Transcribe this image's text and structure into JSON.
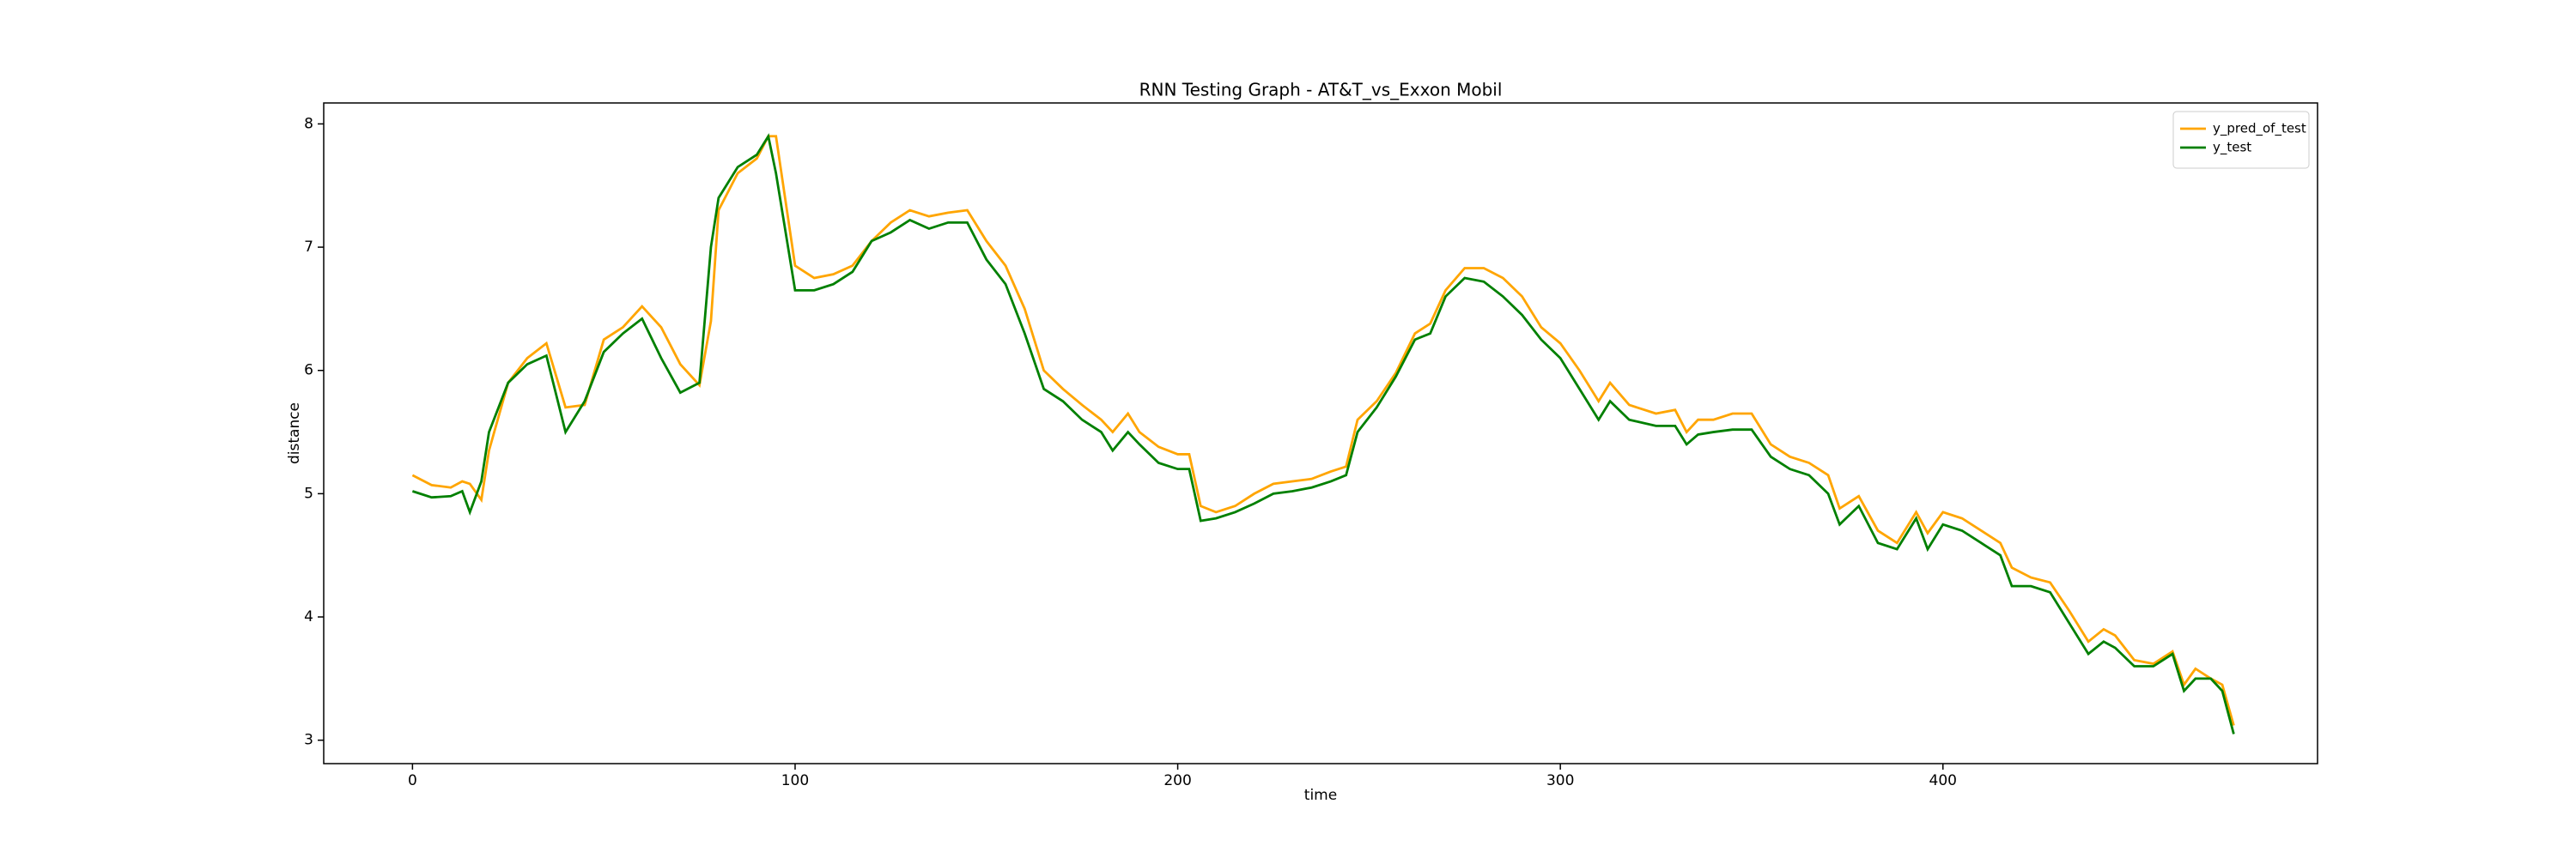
{
  "chart_data": {
    "type": "line",
    "title": "RNN Testing Graph - AT&T_vs_Exxon Mobil",
    "x_label": "time",
    "y_label": "distance",
    "x": [
      0,
      5,
      10,
      13,
      15,
      18,
      20,
      25,
      30,
      35,
      40,
      45,
      50,
      55,
      60,
      65,
      70,
      75,
      78,
      80,
      85,
      90,
      93,
      95,
      100,
      105,
      110,
      115,
      120,
      125,
      130,
      135,
      140,
      145,
      150,
      155,
      160,
      165,
      170,
      175,
      180,
      183,
      187,
      190,
      195,
      200,
      203,
      206,
      210,
      215,
      220,
      225,
      230,
      235,
      240,
      244,
      247,
      252,
      257,
      262,
      266,
      270,
      275,
      280,
      285,
      290,
      295,
      300,
      305,
      310,
      313,
      318,
      325,
      330,
      333,
      336,
      340,
      345,
      350,
      355,
      360,
      365,
      370,
      373,
      378,
      383,
      388,
      393,
      396,
      400,
      405,
      410,
      415,
      418,
      423,
      428,
      433,
      438,
      442,
      445,
      450,
      455,
      460,
      463,
      466,
      470,
      473,
      476
    ],
    "series": [
      {
        "name": "y_pred_of_test",
        "color": "#ffa500",
        "values": [
          5.15,
          5.07,
          5.05,
          5.1,
          5.08,
          4.95,
          5.35,
          5.9,
          6.1,
          6.22,
          5.7,
          5.72,
          6.25,
          6.35,
          6.52,
          6.35,
          6.05,
          5.88,
          6.4,
          7.3,
          7.6,
          7.72,
          7.9,
          7.9,
          6.85,
          6.75,
          6.78,
          6.85,
          7.05,
          7.2,
          7.3,
          7.25,
          7.28,
          7.3,
          7.05,
          6.85,
          6.5,
          6.0,
          5.85,
          5.72,
          5.6,
          5.5,
          5.65,
          5.5,
          5.38,
          5.32,
          5.32,
          4.9,
          4.85,
          4.9,
          5.0,
          5.08,
          5.1,
          5.12,
          5.18,
          5.22,
          5.6,
          5.75,
          5.98,
          6.3,
          6.38,
          6.65,
          6.83,
          6.83,
          6.75,
          6.6,
          6.35,
          6.22,
          6.0,
          5.75,
          5.9,
          5.72,
          5.65,
          5.68,
          5.5,
          5.6,
          5.6,
          5.65,
          5.65,
          5.4,
          5.3,
          5.25,
          5.15,
          4.88,
          4.98,
          4.7,
          4.6,
          4.85,
          4.68,
          4.85,
          4.8,
          4.7,
          4.6,
          4.4,
          4.32,
          4.28,
          4.05,
          3.8,
          3.9,
          3.85,
          3.65,
          3.62,
          3.72,
          3.45,
          3.58,
          3.5,
          3.45,
          3.12
        ]
      },
      {
        "name": "y_test",
        "color": "#008000",
        "values": [
          5.02,
          4.97,
          4.98,
          5.02,
          4.85,
          5.1,
          5.5,
          5.9,
          6.05,
          6.12,
          5.5,
          5.75,
          6.15,
          6.3,
          6.42,
          6.1,
          5.82,
          5.9,
          7.0,
          7.4,
          7.65,
          7.75,
          7.9,
          7.6,
          6.65,
          6.65,
          6.7,
          6.8,
          7.05,
          7.12,
          7.22,
          7.15,
          7.2,
          7.2,
          6.9,
          6.7,
          6.3,
          5.85,
          5.75,
          5.6,
          5.5,
          5.35,
          5.5,
          5.4,
          5.25,
          5.2,
          5.2,
          4.78,
          4.8,
          4.85,
          4.92,
          5.0,
          5.02,
          5.05,
          5.1,
          5.15,
          5.5,
          5.7,
          5.95,
          6.25,
          6.3,
          6.6,
          6.75,
          6.72,
          6.6,
          6.45,
          6.25,
          6.1,
          5.85,
          5.6,
          5.75,
          5.6,
          5.55,
          5.55,
          5.4,
          5.48,
          5.5,
          5.52,
          5.52,
          5.3,
          5.2,
          5.15,
          5.0,
          4.75,
          4.9,
          4.6,
          4.55,
          4.8,
          4.55,
          4.75,
          4.7,
          4.6,
          4.5,
          4.25,
          4.25,
          4.2,
          3.95,
          3.7,
          3.8,
          3.75,
          3.6,
          3.6,
          3.7,
          3.4,
          3.5,
          3.5,
          3.4,
          3.05
        ]
      }
    ],
    "xlim": [
      -23.2,
      497.9
    ],
    "ylim": [
      2.81,
      8.17
    ],
    "xticks": [
      0,
      100,
      200,
      300,
      400
    ],
    "yticks": [
      3,
      4,
      5,
      6,
      7,
      8
    ],
    "legend": "upper right"
  }
}
